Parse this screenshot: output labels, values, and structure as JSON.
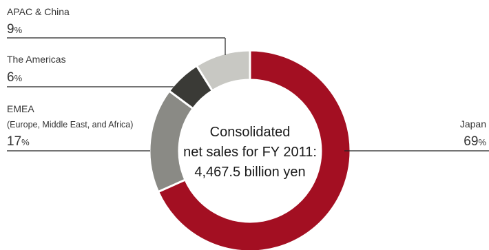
{
  "chart_data": {
    "type": "pie",
    "style": "donut",
    "center_text": [
      "Consolidated",
      "net sales for FY 2011:",
      "4,467.5 billion yen"
    ],
    "slices": [
      {
        "name": "Japan",
        "value": 69,
        "display": "69",
        "unit": "%",
        "color": "#a30f22"
      },
      {
        "name": "EMEA",
        "sublabel": "(Europe, Middle East, and Africa)",
        "value": 17,
        "display": "17",
        "unit": "%",
        "color": "#8a8a85"
      },
      {
        "name": "The Americas",
        "value": 6,
        "display": "6",
        "unit": "%",
        "color": "#3a3a36"
      },
      {
        "name": "APAC & China",
        "value": 9,
        "display": "9",
        "unit": "%",
        "color": "#c8c8c3"
      }
    ]
  }
}
